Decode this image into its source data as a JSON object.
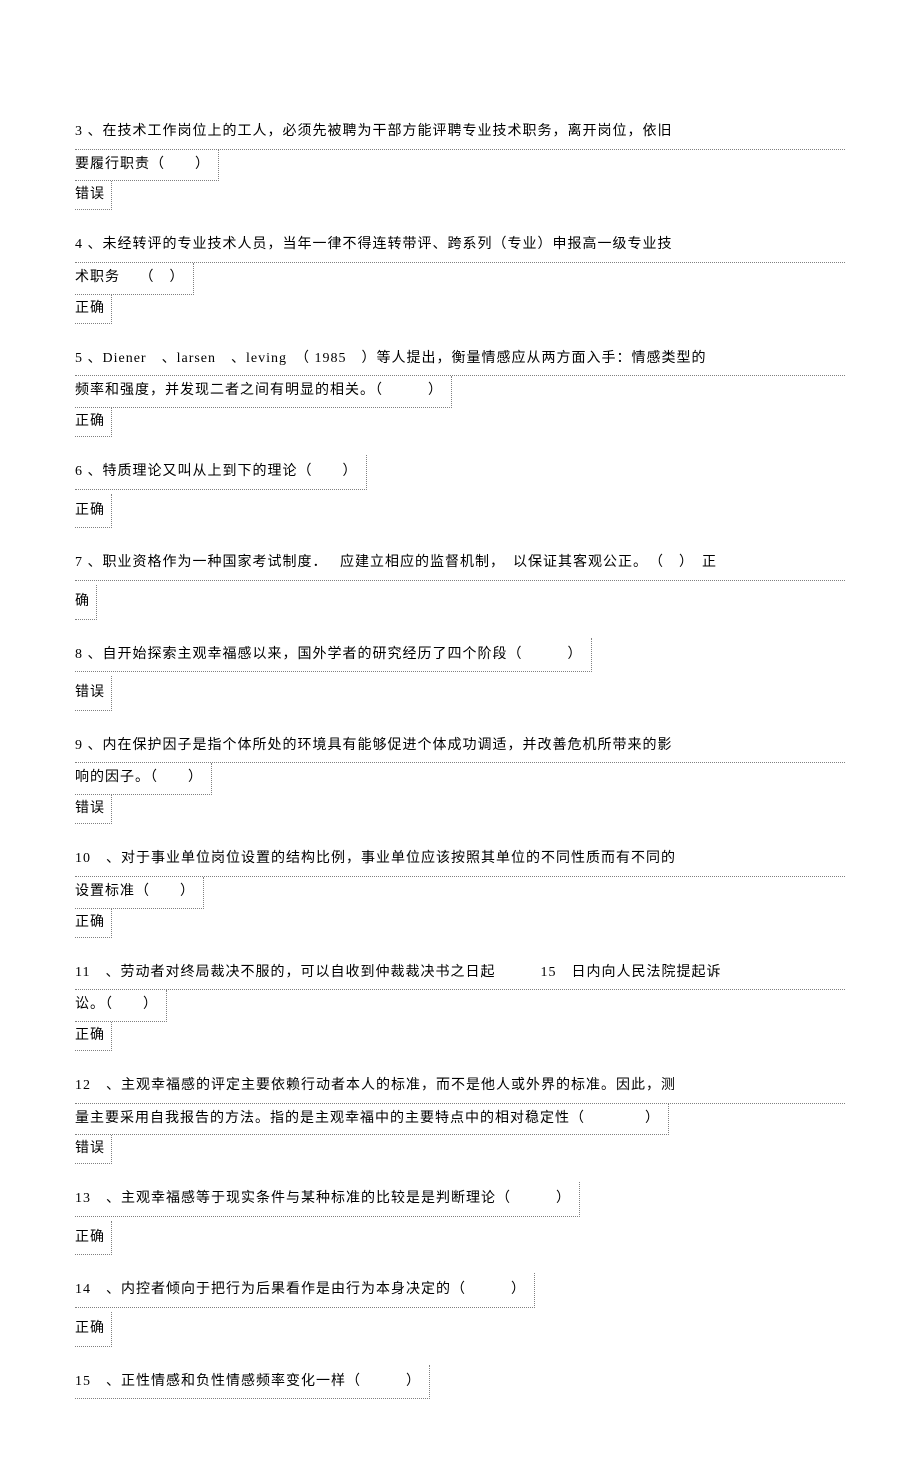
{
  "questions": [
    {
      "number": "3",
      "line1": "3 、在技术工作岗位上的工人，必须先被聘为干部方能评聘专业技术职务，离开岗位，依旧",
      "line2": "要履行职责（　　）",
      "answer": "错误"
    },
    {
      "number": "4",
      "line1": "4 、未经转评的专业技术人员，当年一律不得连转带评、跨系列（专业）申报高一级专业技",
      "line2": "术职务　 （　）",
      "answer": "正确"
    },
    {
      "number": "5",
      "line1": "5 、Diener　、larsen　、leving　（ 1985　）等人提出，衡量情感应从两方面入手：情感类型的",
      "line2": "频率和强度，并发现二者之间有明显的相关。（　　　）",
      "answer": "正确"
    },
    {
      "number": "6",
      "line1": "6 、特质理论又叫从上到下的理论（　　）",
      "answer": "正确"
    },
    {
      "number": "7",
      "line1": "7 、职业资格作为一种国家考试制度．　 应建立相应的监督机制，　以保证其客观公正。　（　）　正",
      "line2": "确"
    },
    {
      "number": "8",
      "line1": "8 、自开始探索主观幸福感以来，国外学者的研究经历了四个阶段（　　　）",
      "answer": "错误"
    },
    {
      "number": "9",
      "line1": "9 、内在保护因子是指个体所处的环境具有能够促进个体成功调适，并改善危机所带来的影",
      "line2": "响的因子。（　　）",
      "answer": "错误"
    },
    {
      "number": "10",
      "line1": "10　、对于事业单位岗位设置的结构比例，事业单位应该按照其单位的不同性质而有不同的",
      "line2": "设置标准（　　）",
      "answer": "正确"
    },
    {
      "number": "11",
      "line1": "11　、劳动者对终局裁决不服的，可以自收到仲裁裁决书之日起　　　15　日内向人民法院提起诉",
      "line2": "讼。（　　）",
      "answer": "正确"
    },
    {
      "number": "12",
      "line1": "12　、主观幸福感的评定主要依赖行动者本人的标准，而不是他人或外界的标准。因此，测",
      "line2": "量主要采用自我报告的方法。指的是主观幸福中的主要特点中的相对稳定性（　　　　）",
      "answer": "错误"
    },
    {
      "number": "13",
      "line1": "13　、主观幸福感等于现实条件与某种标准的比较是是判断理论（　　　）",
      "answer": "正确"
    },
    {
      "number": "14",
      "line1": "14　、内控者倾向于把行为后果看作是由行为本身决定的（　　　）",
      "answer": "正确"
    },
    {
      "number": "15",
      "line1": "15　、正性情感和负性情感频率变化一样（　　　）"
    }
  ]
}
